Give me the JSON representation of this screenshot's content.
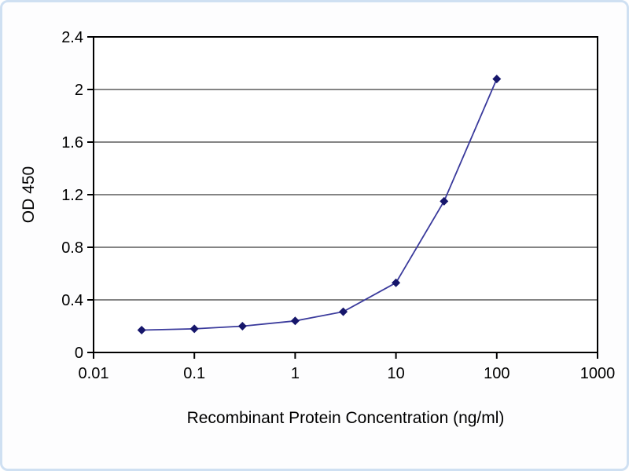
{
  "figure": {
    "background_color": "#fdfdfe",
    "border_color": "#cfe0f2"
  },
  "chart_data": {
    "type": "line",
    "title": "",
    "xlabel": "Recombinant Protein Concentration (ng/ml)",
    "ylabel": "OD 450",
    "xscale": "log",
    "xlim": [
      0.01,
      1000
    ],
    "ylim": [
      0,
      2.4
    ],
    "x_tick_labels": [
      "0.01",
      "0.1",
      "1",
      "10",
      "100",
      "1000"
    ],
    "y_tick_labels": [
      "0",
      "0.4",
      "0.8",
      "1.2",
      "1.6",
      "2",
      "2.4"
    ],
    "grid": "horizontal",
    "legend": "none",
    "axis_color": "#000000",
    "grid_color": "#3a3a3a",
    "series": [
      {
        "name": "OD 450",
        "x": [
          0.03,
          0.1,
          0.3,
          1,
          3,
          10,
          30,
          100
        ],
        "y": [
          0.17,
          0.18,
          0.2,
          0.24,
          0.31,
          0.53,
          1.15,
          2.08
        ],
        "line_color": "#3a3a9c",
        "marker": "diamond",
        "marker_color": "#16166b"
      }
    ]
  }
}
